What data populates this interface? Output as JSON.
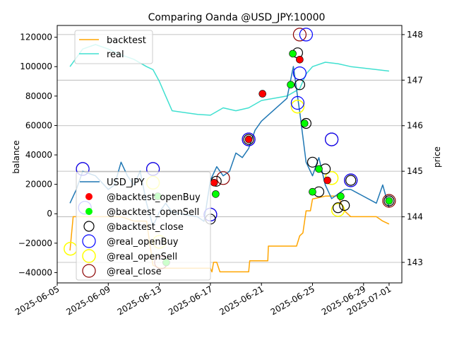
{
  "chart_data": {
    "type": "line",
    "title": "Comparing Oanda @USD_JPY:10000",
    "left_axis": {
      "label": "balance",
      "ylim": [
        -47000,
        128000
      ],
      "ticks": [
        -40000,
        -20000,
        0,
        20000,
        40000,
        60000,
        80000,
        100000,
        120000
      ],
      "tick_labels": [
        "−40000",
        "−20000",
        "0",
        "20000",
        "40000",
        "60000",
        "80000",
        "100000",
        "120000"
      ]
    },
    "right_axis": {
      "label": "price",
      "ylim": [
        142.55,
        148.2
      ],
      "ticks": [
        143,
        144,
        145,
        146,
        147,
        148
      ],
      "tick_labels": [
        "143",
        "144",
        "145",
        "146",
        "147",
        "148"
      ],
      "grid": true
    },
    "x_axis": {
      "xlim": [
        "2025-06-05",
        "2025-07-02"
      ],
      "ticks": [
        "2025-06-05",
        "2025-06-09",
        "2025-06-13",
        "2025-06-17",
        "2025-06-21",
        "2025-06-25",
        "2025-06-29",
        "2025-07-01"
      ],
      "tick_labels": [
        "2025-06-05",
        "2025-06-09",
        "2025-06-13",
        "2025-06-17",
        "2025-06-21",
        "2025-06-25",
        "2025-06-29",
        "2025-07-01"
      ]
    },
    "legend_balance": {
      "placement": "top-left",
      "entries": [
        "backtest",
        "real"
      ]
    },
    "legend_price": {
      "placement": "lower-left",
      "entries": [
        "USD_JPY",
        "@backtest_openBuy",
        "@backtest_openSell",
        "@backtest_close",
        "@real_openBuy",
        "@real_openSell",
        "@real_close"
      ]
    },
    "series": [
      {
        "name": "backtest",
        "axis": "left",
        "color": "#ffa500",
        "points": [
          [
            "2025-06-06",
            -25000
          ],
          [
            "2025-06-06 06:00",
            -2000
          ],
          [
            "2025-06-08",
            -2000
          ],
          [
            "2025-06-10",
            -2000
          ],
          [
            "2025-06-11",
            -5000
          ],
          [
            "2025-06-12",
            -5000
          ],
          [
            "2025-06-12 12:00",
            -35000
          ],
          [
            "2025-06-13",
            -37000
          ],
          [
            "2025-06-14",
            -37000
          ],
          [
            "2025-06-16",
            -37000
          ],
          [
            "2025-06-17",
            -37000
          ],
          [
            "2025-06-17 03:00",
            -39500
          ],
          [
            "2025-06-17 06:00",
            -33000
          ],
          [
            "2025-06-17 12:00",
            -33000
          ],
          [
            "2025-06-17 18:00",
            -39500
          ],
          [
            "2025-06-20",
            -39500
          ],
          [
            "2025-06-20 02:00",
            -32000
          ],
          [
            "2025-06-21 12:00",
            -32000
          ],
          [
            "2025-06-21 13:00",
            -22000
          ],
          [
            "2025-06-23",
            -22000
          ],
          [
            "2025-06-23 18:00",
            -22000
          ],
          [
            "2025-06-24",
            -15000
          ],
          [
            "2025-06-24 06:00",
            -13000
          ],
          [
            "2025-06-24 12:00",
            2000
          ],
          [
            "2025-06-24 20:00",
            2000
          ],
          [
            "2025-06-25",
            10000
          ],
          [
            "2025-06-25 12:00",
            11000
          ],
          [
            "2025-06-26",
            12000
          ],
          [
            "2025-06-27",
            12000
          ],
          [
            "2025-06-27 12:00",
            2000
          ],
          [
            "2025-06-28",
            -2000
          ],
          [
            "2025-06-30",
            -2000
          ],
          [
            "2025-06-30 12:00",
            -5000
          ],
          [
            "2025-07-01",
            -7000
          ]
        ]
      },
      {
        "name": "real",
        "axis": "left",
        "color": "#40e0d0",
        "points": [
          [
            "2025-06-06",
            100000
          ],
          [
            "2025-06-07",
            112000
          ],
          [
            "2025-06-08",
            115000
          ],
          [
            "2025-06-09",
            112000
          ],
          [
            "2025-06-10",
            108000
          ],
          [
            "2025-06-11",
            105000
          ],
          [
            "2025-06-12",
            100000
          ],
          [
            "2025-06-12 12:00",
            98000
          ],
          [
            "2025-06-13",
            90000
          ],
          [
            "2025-06-13 12:00",
            80000
          ],
          [
            "2025-06-14",
            70000
          ],
          [
            "2025-06-16",
            67500
          ],
          [
            "2025-06-17",
            67000
          ],
          [
            "2025-06-18",
            72000
          ],
          [
            "2025-06-19",
            70000
          ],
          [
            "2025-06-20",
            72000
          ],
          [
            "2025-06-21",
            77000
          ],
          [
            "2025-06-23",
            80000
          ],
          [
            "2025-06-24",
            85000
          ],
          [
            "2025-06-24 12:00",
            95000
          ],
          [
            "2025-06-25",
            100000
          ],
          [
            "2025-06-26",
            103000
          ],
          [
            "2025-06-27",
            102000
          ],
          [
            "2025-06-28",
            100000
          ],
          [
            "2025-06-30",
            98000
          ],
          [
            "2025-07-01",
            97000
          ]
        ]
      },
      {
        "name": "USD_JPY",
        "axis": "right",
        "color": "#1f77b4",
        "points": [
          [
            "2025-06-06",
            144.3
          ],
          [
            "2025-06-06 12:00",
            144.6
          ],
          [
            "2025-06-07",
            145.0
          ],
          [
            "2025-06-08",
            144.9
          ],
          [
            "2025-06-09",
            144.6
          ],
          [
            "2025-06-09 12:00",
            144.7
          ],
          [
            "2025-06-10",
            145.2
          ],
          [
            "2025-06-10 12:00",
            144.9
          ],
          [
            "2025-06-11",
            144.7
          ],
          [
            "2025-06-11 12:00",
            145.0
          ],
          [
            "2025-06-12",
            144.3
          ],
          [
            "2025-06-12 12:00",
            143.8
          ],
          [
            "2025-06-13",
            144.1
          ],
          [
            "2025-06-13 12:00",
            144.3
          ],
          [
            "2025-06-14",
            144.1
          ],
          [
            "2025-06-16",
            144.0
          ],
          [
            "2025-06-16 12:00",
            143.9
          ],
          [
            "2025-06-17",
            144.8
          ],
          [
            "2025-06-17 12:00",
            145.1
          ],
          [
            "2025-06-18",
            144.9
          ],
          [
            "2025-06-18 12:00",
            145.0
          ],
          [
            "2025-06-19",
            145.4
          ],
          [
            "2025-06-19 12:00",
            145.3
          ],
          [
            "2025-06-20",
            145.5
          ],
          [
            "2025-06-20 12:00",
            145.9
          ],
          [
            "2025-06-21",
            146.1
          ],
          [
            "2025-06-23",
            146.6
          ],
          [
            "2025-06-23 12:00",
            147.3
          ],
          [
            "2025-06-24",
            146.3
          ],
          [
            "2025-06-24 12:00",
            145.2
          ],
          [
            "2025-06-25",
            144.9
          ],
          [
            "2025-06-25 12:00",
            145.3
          ],
          [
            "2025-06-26",
            144.7
          ],
          [
            "2025-06-26 12:00",
            144.4
          ],
          [
            "2025-06-27",
            144.5
          ],
          [
            "2025-06-27 12:00",
            144.6
          ],
          [
            "2025-06-28",
            144.6
          ],
          [
            "2025-06-30",
            144.3
          ],
          [
            "2025-06-30 12:00",
            144.7
          ],
          [
            "2025-07-01",
            144.2
          ]
        ]
      }
    ],
    "markers": {
      "backtest_openBuy": {
        "label": "@backtest_openBuy",
        "color": "#ff0000",
        "points": [
          [
            "2025-06-17 07:00",
            144.75
          ],
          [
            "2025-06-20",
            145.7
          ],
          [
            "2025-06-21 02:00",
            146.7
          ],
          [
            "2025-06-24",
            147.45
          ],
          [
            "2025-06-26 04:00",
            144.8
          ]
        ]
      },
      "backtest_openSell": {
        "label": "@backtest_openSell",
        "color": "#00ff00",
        "points": [
          [
            "2025-06-12 21:00",
            144.45
          ],
          [
            "2025-06-13 13:00",
            143.0
          ],
          [
            "2025-06-17 10:00",
            144.5
          ],
          [
            "2025-06-23 07:00",
            146.9
          ],
          [
            "2025-06-23 11:00",
            147.58
          ],
          [
            "2025-06-24 09:00",
            146.05
          ],
          [
            "2025-06-25",
            144.55
          ],
          [
            "2025-06-25 12:00",
            145.05
          ],
          [
            "2025-06-27 05:00",
            144.45
          ],
          [
            "2025-07-01",
            144.35
          ]
        ]
      },
      "backtest_close": {
        "label": "@backtest_close",
        "color": "#000000",
        "points": [
          [
            "2025-06-17",
            143.95
          ],
          [
            "2025-06-17 11:00",
            144.78
          ],
          [
            "2025-06-20",
            145.7
          ],
          [
            "2025-06-23 20:00",
            147.6
          ],
          [
            "2025-06-24",
            146.9
          ],
          [
            "2025-06-24 12:00",
            146.05
          ],
          [
            "2025-06-25",
            145.2
          ],
          [
            "2025-06-25 12:00",
            144.55
          ],
          [
            "2025-06-26",
            145.05
          ],
          [
            "2025-06-27",
            144.2
          ],
          [
            "2025-06-27 12:00",
            144.25
          ],
          [
            "2025-06-28",
            144.8
          ],
          [
            "2025-07-01",
            144.35
          ]
        ]
      },
      "real_openBuy": {
        "label": "@real_openBuy",
        "color": "#0000ff",
        "points": [
          [
            "2025-06-07",
            145.05
          ],
          [
            "2025-06-07 04:00",
            144.2
          ],
          [
            "2025-06-12 12:00",
            145.05
          ],
          [
            "2025-06-17",
            144.05
          ],
          [
            "2025-06-20",
            145.7
          ],
          [
            "2025-06-23 20:00",
            146.5
          ],
          [
            "2025-06-24",
            147.15
          ],
          [
            "2025-06-24 12:00",
            148.0
          ],
          [
            "2025-06-26 12:00",
            145.7
          ],
          [
            "2025-06-28",
            144.8
          ]
        ]
      },
      "real_openSell": {
        "label": "@real_openSell",
        "color": "#ffff00",
        "points": [
          [
            "2025-06-06 01:00",
            143.3
          ],
          [
            "2025-06-12 12:00",
            144.75
          ],
          [
            "2025-06-13",
            143.45
          ],
          [
            "2025-06-23 20:00",
            146.42
          ],
          [
            "2025-06-26 12:00",
            144.85
          ],
          [
            "2025-06-27",
            144.15
          ]
        ]
      },
      "real_close": {
        "label": "@real_close",
        "color": "#8b0000",
        "points": [
          [
            "2025-06-07",
            145.05
          ],
          [
            "2025-06-12 12:00",
            145.05
          ],
          [
            "2025-06-13 03:00",
            143.0
          ],
          [
            "2025-06-17",
            144.05
          ],
          [
            "2025-06-18",
            144.85
          ],
          [
            "2025-06-20",
            145.7
          ],
          [
            "2025-06-24",
            148.0
          ],
          [
            "2025-06-26 12:00",
            145.7
          ],
          [
            "2025-06-28",
            144.8
          ],
          [
            "2025-07-01",
            144.35
          ]
        ]
      }
    }
  }
}
